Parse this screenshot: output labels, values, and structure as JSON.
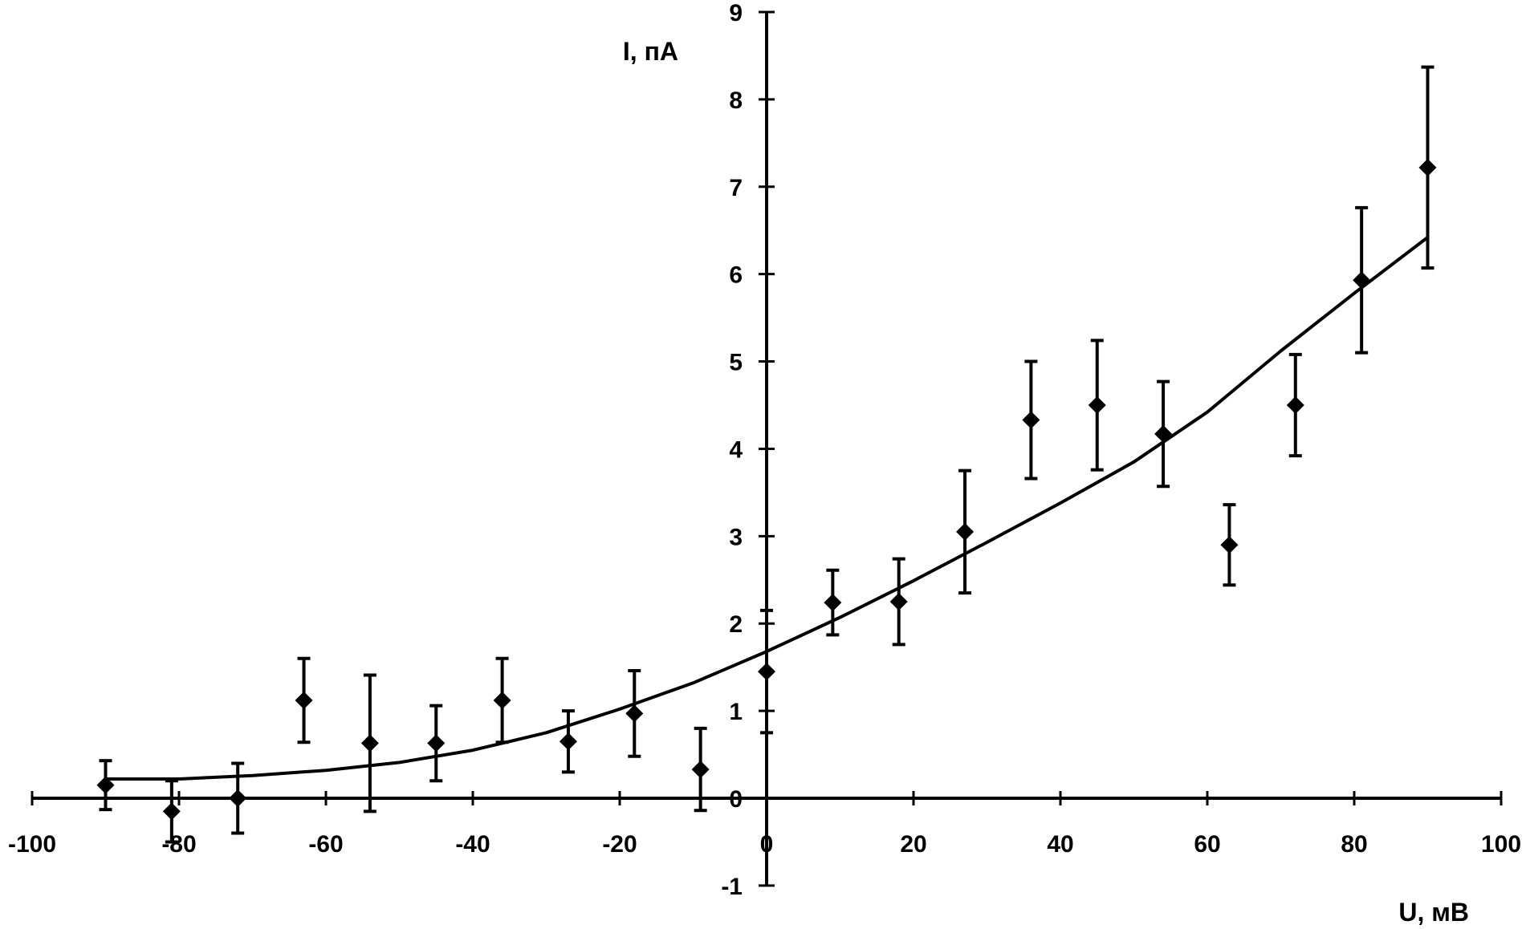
{
  "chart_data": {
    "type": "scatter",
    "xlabel": "U, мВ",
    "ylabel": "I, пА",
    "xlim": [
      -100,
      100
    ],
    "ylim": [
      -1,
      9
    ],
    "x_ticks": [
      -100,
      -80,
      -60,
      -40,
      -20,
      0,
      20,
      40,
      60,
      80,
      100
    ],
    "y_ticks": [
      -1,
      0,
      1,
      2,
      3,
      4,
      5,
      6,
      7,
      8,
      9
    ],
    "grid": false,
    "legend": "none",
    "series": [
      {
        "kind": "points_with_error_bars",
        "marker": "diamond",
        "color": "#000000",
        "points": [
          {
            "x": -90,
            "y": 0.15,
            "err": 0.28
          },
          {
            "x": -81,
            "y": -0.15,
            "err": 0.35
          },
          {
            "x": -72,
            "y": 0.0,
            "err": 0.4
          },
          {
            "x": -63,
            "y": 1.12,
            "err": 0.48
          },
          {
            "x": -54,
            "y": 0.63,
            "err": 0.78
          },
          {
            "x": -45,
            "y": 0.63,
            "err": 0.43
          },
          {
            "x": -36,
            "y": 1.12,
            "err": 0.48
          },
          {
            "x": -27,
            "y": 0.65,
            "err": 0.35
          },
          {
            "x": -18,
            "y": 0.97,
            "err": 0.49
          },
          {
            "x": -9,
            "y": 0.33,
            "err": 0.47
          },
          {
            "x": 0,
            "y": 1.45,
            "err": 0.7
          },
          {
            "x": 9,
            "y": 2.24,
            "err": 0.37
          },
          {
            "x": 18,
            "y": 2.25,
            "err": 0.49
          },
          {
            "x": 27,
            "y": 3.05,
            "err": 0.7
          },
          {
            "x": 36,
            "y": 4.33,
            "err": 0.67
          },
          {
            "x": 45,
            "y": 4.5,
            "err": 0.74
          },
          {
            "x": 54,
            "y": 4.17,
            "err": 0.6
          },
          {
            "x": 63,
            "y": 2.9,
            "err": 0.46
          },
          {
            "x": 72,
            "y": 4.5,
            "err": 0.58
          },
          {
            "x": 81,
            "y": 5.93,
            "err": 0.83
          },
          {
            "x": 90,
            "y": 7.22,
            "err": 1.15
          }
        ]
      },
      {
        "kind": "fit_line",
        "color": "#000000",
        "x": [
          -90,
          -80,
          -70,
          -60,
          -50,
          -40,
          -30,
          -20,
          -10,
          0,
          10,
          20,
          30,
          40,
          50,
          60,
          70,
          80,
          90
        ],
        "y": [
          0.22,
          0.22,
          0.26,
          0.32,
          0.41,
          0.55,
          0.75,
          1.02,
          1.32,
          1.68,
          2.07,
          2.49,
          2.93,
          3.38,
          3.85,
          4.42,
          5.12,
          5.78,
          6.42
        ]
      }
    ]
  }
}
